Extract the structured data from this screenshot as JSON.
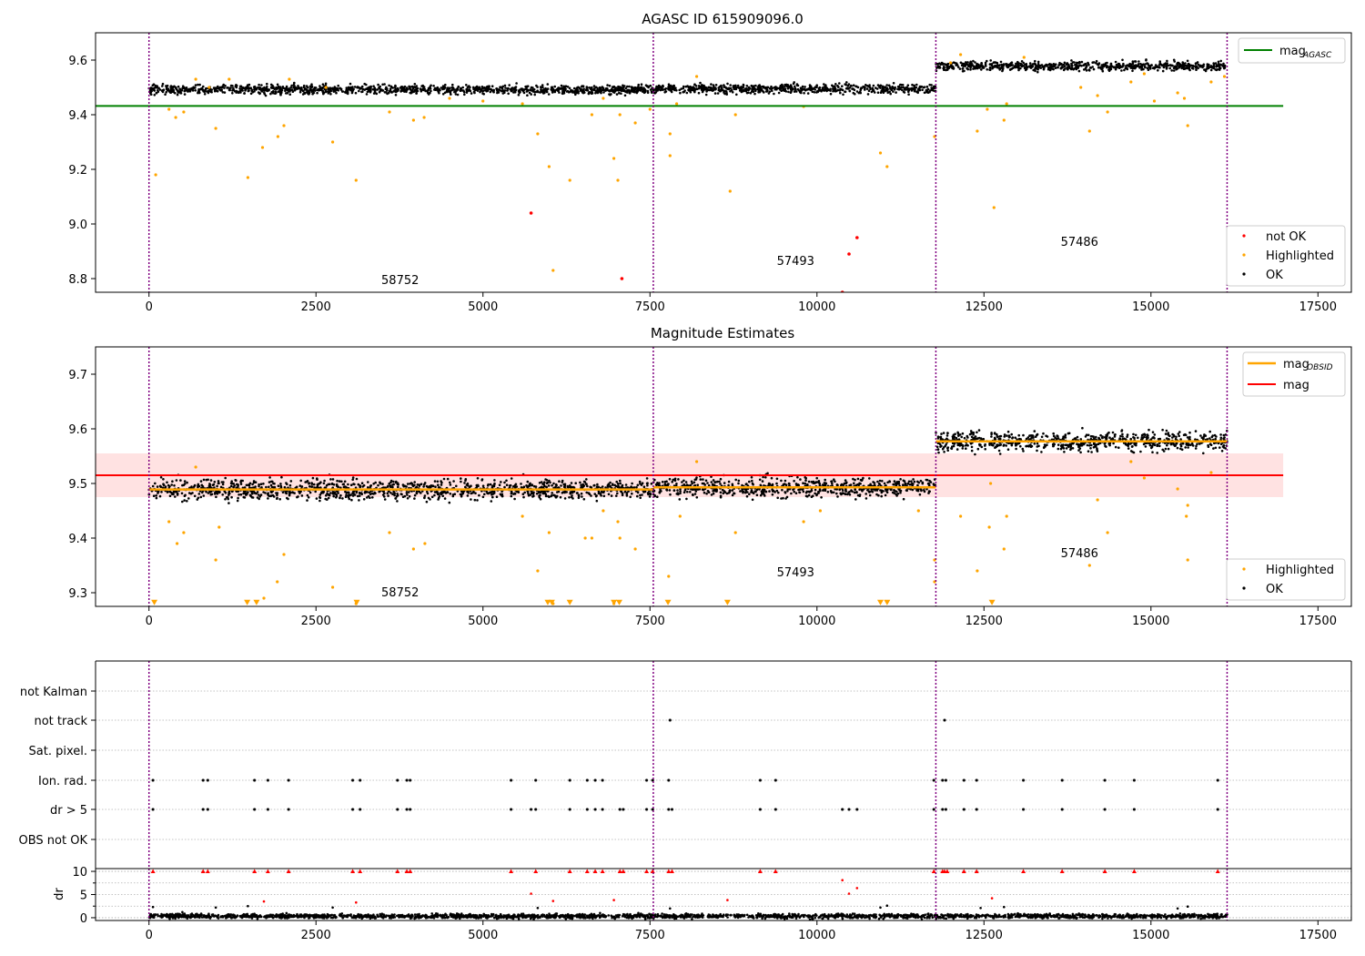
{
  "colors": {
    "ok": "#000000",
    "highlighted": "#ffa500",
    "not_ok": "#ff0000",
    "agasc_line": "#008000",
    "mag_line": "#ff0000",
    "mag_band": "#ffdddd",
    "obsid_line": "#ffa500",
    "obsid_boundary": "#800080"
  },
  "obsid_boundaries": [
    0,
    7550,
    11780,
    16140
  ],
  "chart_data": [
    {
      "type": "scatter",
      "title": "AGASC ID 615909096.0",
      "xlim": [
        -800,
        18000
      ],
      "ylim": [
        8.75,
        9.7
      ],
      "xticks": [
        0,
        2500,
        5000,
        7500,
        10000,
        12500,
        15000,
        17500
      ],
      "yticks": [
        8.8,
        9.0,
        9.2,
        9.4,
        9.6
      ],
      "ytick_labels": [
        "8.8",
        "9.0",
        "9.2",
        "9.4",
        "9.6"
      ],
      "legend_top": {
        "position": "top-right",
        "entries": [
          {
            "label_main": "mag",
            "label_sub": "AGASC",
            "marker": "line",
            "color": "#008000"
          }
        ]
      },
      "legend_bottom": {
        "position": "bottom-right",
        "entries": [
          {
            "label": "not OK",
            "marker": "dot",
            "color": "#ff0000"
          },
          {
            "label": "Highlighted",
            "marker": "dot",
            "color": "#ffa500"
          },
          {
            "label": "OK",
            "marker": "dot",
            "color": "#000000"
          }
        ]
      },
      "hlines": [
        {
          "name": "mag_AGASC",
          "y": 9.432,
          "x_range": [
            -800,
            16980
          ],
          "color": "#008000"
        }
      ],
      "ok_series": [
        {
          "x_range": [
            0,
            7550
          ],
          "center": 9.492,
          "spread": 0.012
        },
        {
          "x_range": [
            7550,
            11780
          ],
          "center": 9.495,
          "spread": 0.012
        },
        {
          "x_range": [
            11780,
            16140
          ],
          "center": 9.578,
          "spread": 0.012
        }
      ],
      "annotations": [
        {
          "text": "58752",
          "x": 3760,
          "y": 8.78
        },
        {
          "text": "57493",
          "x": 9680,
          "y": 8.85
        },
        {
          "text": "57486",
          "x": 13930,
          "y": 8.92
        }
      ],
      "highlighted_points": [
        [
          100,
          9.18
        ],
        [
          300,
          9.42
        ],
        [
          400,
          9.39
        ],
        [
          520,
          9.41
        ],
        [
          700,
          9.53
        ],
        [
          900,
          9.5
        ],
        [
          1000,
          9.35
        ],
        [
          1200,
          9.53
        ],
        [
          1480,
          9.17
        ],
        [
          1700,
          9.28
        ],
        [
          1930,
          9.32
        ],
        [
          2020,
          9.36
        ],
        [
          2100,
          9.53
        ],
        [
          2650,
          9.5
        ],
        [
          2750,
          9.3
        ],
        [
          3100,
          9.16
        ],
        [
          3600,
          9.41
        ],
        [
          3960,
          9.38
        ],
        [
          4120,
          9.39
        ],
        [
          4500,
          9.46
        ],
        [
          5000,
          9.45
        ],
        [
          5590,
          9.44
        ],
        [
          5820,
          9.33
        ],
        [
          5990,
          9.21
        ],
        [
          6050,
          8.83
        ],
        [
          6300,
          9.16
        ],
        [
          6630,
          9.4
        ],
        [
          6800,
          9.46
        ],
        [
          6960,
          9.24
        ],
        [
          7020,
          9.16
        ],
        [
          7050,
          9.4
        ],
        [
          7280,
          9.37
        ],
        [
          7500,
          9.42
        ],
        [
          7800,
          9.33
        ],
        [
          7800,
          9.25
        ],
        [
          7900,
          9.44
        ],
        [
          8200,
          9.54
        ],
        [
          8700,
          9.12
        ],
        [
          8780,
          9.4
        ],
        [
          9800,
          9.43
        ],
        [
          10950,
          9.26
        ],
        [
          11050,
          9.21
        ],
        [
          11760,
          9.32
        ],
        [
          12000,
          9.59
        ],
        [
          12150,
          9.62
        ],
        [
          12400,
          9.34
        ],
        [
          12550,
          9.42
        ],
        [
          12650,
          9.06
        ],
        [
          12800,
          9.38
        ],
        [
          12840,
          9.44
        ],
        [
          13100,
          9.61
        ],
        [
          13950,
          9.5
        ],
        [
          14080,
          9.34
        ],
        [
          14200,
          9.47
        ],
        [
          14350,
          9.41
        ],
        [
          14700,
          9.52
        ],
        [
          14900,
          9.55
        ],
        [
          15050,
          9.45
        ],
        [
          15400,
          9.48
        ],
        [
          15550,
          9.36
        ],
        [
          15500,
          9.46
        ],
        [
          15900,
          9.52
        ],
        [
          16100,
          9.54
        ]
      ],
      "not_ok_points": [
        [
          5720,
          9.04
        ],
        [
          7080,
          8.8
        ],
        [
          10380,
          8.75
        ],
        [
          10480,
          8.89
        ],
        [
          10600,
          8.95
        ]
      ]
    },
    {
      "type": "scatter",
      "title": "Magnitude Estimates",
      "xlim": [
        -800,
        18000
      ],
      "ylim": [
        9.275,
        9.75
      ],
      "xticks": [
        0,
        2500,
        5000,
        7500,
        10000,
        12500,
        15000,
        17500
      ],
      "yticks": [
        9.3,
        9.4,
        9.5,
        9.6,
        9.7
      ],
      "ytick_labels": [
        "9.3",
        "9.4",
        "9.5",
        "9.6",
        "9.7"
      ],
      "legend_top": {
        "position": "top-right",
        "entries": [
          {
            "label_main": "mag",
            "label_sub": "OBSID",
            "marker": "line",
            "color": "#ffa500"
          },
          {
            "label_main": "mag",
            "label_sub": "",
            "marker": "line",
            "color": "#ff0000"
          }
        ]
      },
      "legend_bottom": {
        "position": "bottom-right",
        "entries": [
          {
            "label": "Highlighted",
            "marker": "dot",
            "color": "#ffa500"
          },
          {
            "label": "OK",
            "marker": "dot",
            "color": "#000000"
          }
        ]
      },
      "mag": {
        "y": 9.515,
        "band": [
          9.475,
          9.555
        ],
        "x_range": [
          -800,
          16980
        ]
      },
      "obsid_mags": [
        {
          "x_range": [
            0,
            7550
          ],
          "y": 9.489
        },
        {
          "x_range": [
            7550,
            11780
          ],
          "y": 9.493
        },
        {
          "x_range": [
            11780,
            16140
          ],
          "y": 9.577
        }
      ],
      "ok_series": [
        {
          "x_range": [
            0,
            7550
          ],
          "center": 9.489,
          "spread": 0.013
        },
        {
          "x_range": [
            7550,
            11780
          ],
          "center": 9.493,
          "spread": 0.013
        },
        {
          "x_range": [
            11780,
            16140
          ],
          "center": 9.577,
          "spread": 0.013
        }
      ],
      "annotations": [
        {
          "text": "58752",
          "x": 3760,
          "y": 9.293
        },
        {
          "text": "57493",
          "x": 9680,
          "y": 9.33
        },
        {
          "text": "57486",
          "x": 13930,
          "y": 9.365
        }
      ],
      "highlighted_points": [
        [
          300,
          9.43
        ],
        [
          420,
          9.39
        ],
        [
          520,
          9.41
        ],
        [
          700,
          9.53
        ],
        [
          1000,
          9.36
        ],
        [
          1050,
          9.42
        ],
        [
          1720,
          9.29
        ],
        [
          1920,
          9.32
        ],
        [
          2020,
          9.37
        ],
        [
          2750,
          9.31
        ],
        [
          3100,
          9.28
        ],
        [
          3600,
          9.41
        ],
        [
          3960,
          9.38
        ],
        [
          4130,
          9.39
        ],
        [
          5590,
          9.44
        ],
        [
          5820,
          9.34
        ],
        [
          5990,
          9.41
        ],
        [
          6050,
          9.28
        ],
        [
          6530,
          9.4
        ],
        [
          6630,
          9.4
        ],
        [
          6800,
          9.45
        ],
        [
          6960,
          9.28
        ],
        [
          7020,
          9.43
        ],
        [
          7050,
          9.4
        ],
        [
          7280,
          9.38
        ],
        [
          7780,
          9.33
        ],
        [
          7950,
          9.44
        ],
        [
          8200,
          9.54
        ],
        [
          8780,
          9.41
        ],
        [
          9800,
          9.43
        ],
        [
          10050,
          9.45
        ],
        [
          11520,
          9.45
        ],
        [
          11760,
          9.36
        ],
        [
          11760,
          9.32
        ],
        [
          12150,
          9.44
        ],
        [
          12400,
          9.34
        ],
        [
          12580,
          9.42
        ],
        [
          12600,
          9.5
        ],
        [
          12800,
          9.38
        ],
        [
          12840,
          9.44
        ],
        [
          14080,
          9.35
        ],
        [
          14200,
          9.47
        ],
        [
          14350,
          9.41
        ],
        [
          14700,
          9.54
        ],
        [
          14900,
          9.51
        ],
        [
          15400,
          9.49
        ],
        [
          15550,
          9.36
        ],
        [
          15530,
          9.44
        ],
        [
          15550,
          9.46
        ],
        [
          15900,
          9.52
        ]
      ],
      "triangles": [
        80,
        1470,
        1610,
        3110,
        5970,
        6030,
        6300,
        6960,
        7040,
        7770,
        8660,
        10950,
        11050,
        12620
      ],
      "triangle_y": 9.282
    },
    {
      "type": "scatter",
      "title": "",
      "xlim": [
        -800,
        18000
      ],
      "xticks": [
        0,
        2500,
        5000,
        7500,
        10000,
        12500,
        15000,
        17500
      ],
      "flag_rows": [
        "not Kalman",
        "not track",
        "Sat. pixel.",
        "Ion. rad.",
        "dr > 5",
        "OBS not OK"
      ],
      "flags": {
        "not Kalman": [],
        "not track": [
          7800,
          11910
        ],
        "Sat. pixel.": [],
        "Ion. rad.": [
          60,
          810,
          880,
          1580,
          1780,
          2090,
          3050,
          3160,
          3720,
          3860,
          3910,
          5420,
          5790,
          6300,
          6560,
          6680,
          6790,
          7450,
          7540,
          7780,
          9150,
          9380,
          11750,
          11880,
          11930,
          12200,
          12390,
          13090,
          13670,
          14310,
          14750,
          16000
        ],
        "dr > 5": [
          60,
          810,
          880,
          1580,
          1780,
          2090,
          3050,
          3160,
          3720,
          3860,
          3910,
          5420,
          5720,
          5790,
          6300,
          6560,
          6680,
          6790,
          7050,
          7100,
          7450,
          7540,
          7780,
          7830,
          9150,
          9380,
          10380,
          10480,
          10600,
          11750,
          11880,
          11930,
          12200,
          12390,
          13090,
          13670,
          14310,
          14750,
          16000
        ],
        "OBS not OK": []
      }
    },
    {
      "type": "scatter",
      "title": "",
      "ylabel": "dr",
      "xlim": [
        -800,
        18000
      ],
      "ylim": [
        -0.6,
        10.6
      ],
      "xticks": [
        0,
        2500,
        5000,
        7500,
        10000,
        12500,
        15000,
        17500
      ],
      "xtick_labels": [
        "0",
        "2500",
        "5000",
        "7500",
        "10000",
        "12500",
        "15000",
        "17500"
      ],
      "yticks": [
        0,
        5,
        10
      ],
      "ytick_labels": [
        "0",
        "5",
        "10"
      ],
      "ok_series": [
        {
          "x_range": [
            0,
            16140
          ],
          "center": 0.35,
          "spread": 0.35
        }
      ],
      "capped_x": [
        60,
        810,
        880,
        1580,
        1780,
        2090,
        3050,
        3160,
        3720,
        3860,
        3910,
        5420,
        5790,
        6300,
        6560,
        6680,
        6790,
        7050,
        7100,
        7450,
        7540,
        7780,
        7830,
        9150,
        9380,
        11750,
        11880,
        11910,
        11950,
        12200,
        12390,
        13090,
        13670,
        14310,
        14750,
        16000
      ],
      "red_points": [
        [
          1720,
          3.5
        ],
        [
          3100,
          3.3
        ],
        [
          5720,
          5.2
        ],
        [
          6050,
          3.6
        ],
        [
          6960,
          3.8
        ],
        [
          8660,
          3.8
        ],
        [
          10380,
          8.1
        ],
        [
          10480,
          5.2
        ],
        [
          10600,
          6.4
        ],
        [
          12620,
          4.2
        ]
      ],
      "black_outliers": [
        [
          60,
          2.3
        ],
        [
          500,
          1.2
        ],
        [
          1000,
          2.2
        ],
        [
          1480,
          2.5
        ],
        [
          2750,
          2.2
        ],
        [
          5820,
          2.1
        ],
        [
          7800,
          2.0
        ],
        [
          10950,
          2.2
        ],
        [
          11050,
          2.6
        ],
        [
          12450,
          2.1
        ],
        [
          12800,
          2.3
        ],
        [
          15400,
          2.0
        ],
        [
          15550,
          2.4
        ]
      ]
    }
  ]
}
